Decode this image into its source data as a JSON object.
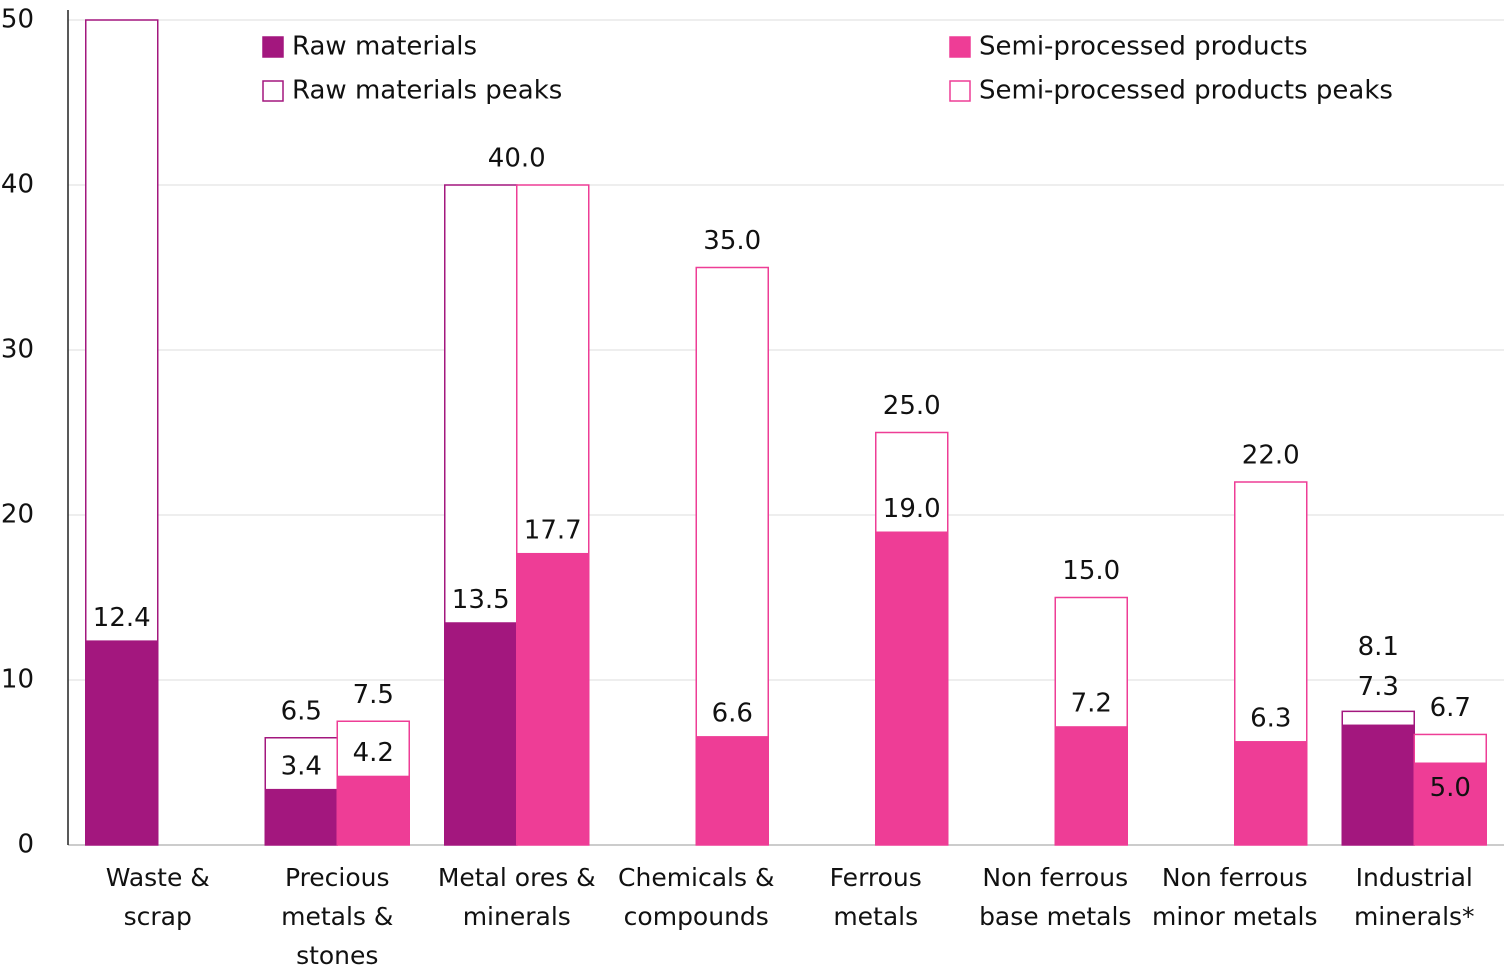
{
  "chart_data": {
    "type": "bar",
    "categories": [
      "Waste & scrap",
      "Precious metals & stones",
      "Metal ores & minerals",
      "Chemicals & compounds",
      "Ferrous metals",
      "Non ferrous base metals",
      "Non ferrous minor metals",
      "Industrial minerals*"
    ],
    "series": [
      {
        "name": "Raw materials",
        "color": "#a3177e",
        "values": [
          12.4,
          3.4,
          13.5,
          null,
          null,
          null,
          null,
          7.3
        ],
        "value_labels": [
          "12.4",
          "3.4",
          "13.5",
          null,
          null,
          null,
          null,
          "7.3"
        ]
      },
      {
        "name": "Semi-processed products",
        "color": "#ee3d96",
        "values": [
          null,
          4.2,
          17.7,
          6.6,
          19.0,
          7.2,
          6.3,
          5.0
        ],
        "value_labels": [
          null,
          "4.2",
          "17.7",
          "6.6",
          "19.0",
          "7.2",
          "6.3",
          "5.0"
        ]
      },
      {
        "name": "Raw materials peaks",
        "color": "#a3177e",
        "values": [
          50,
          6.5,
          40,
          null,
          null,
          null,
          null,
          8.1
        ],
        "value_labels": [
          null,
          "6.5",
          null,
          null,
          null,
          null,
          null,
          "8.1"
        ]
      },
      {
        "name": "Semi-processed products peaks",
        "color": "#ee3d96",
        "values": [
          null,
          7.5,
          40.0,
          35.0,
          25.0,
          15.0,
          22.0,
          6.7
        ],
        "value_labels": [
          null,
          "7.5",
          "40.0",
          "35.0",
          "25.0",
          "15.0",
          "22.0",
          "6.7"
        ]
      }
    ],
    "label_color": "#ee3d96",
    "ylim": [
      0,
      50
    ],
    "yticks": [
      0,
      10,
      20,
      30,
      40,
      50
    ],
    "grid": true
  }
}
